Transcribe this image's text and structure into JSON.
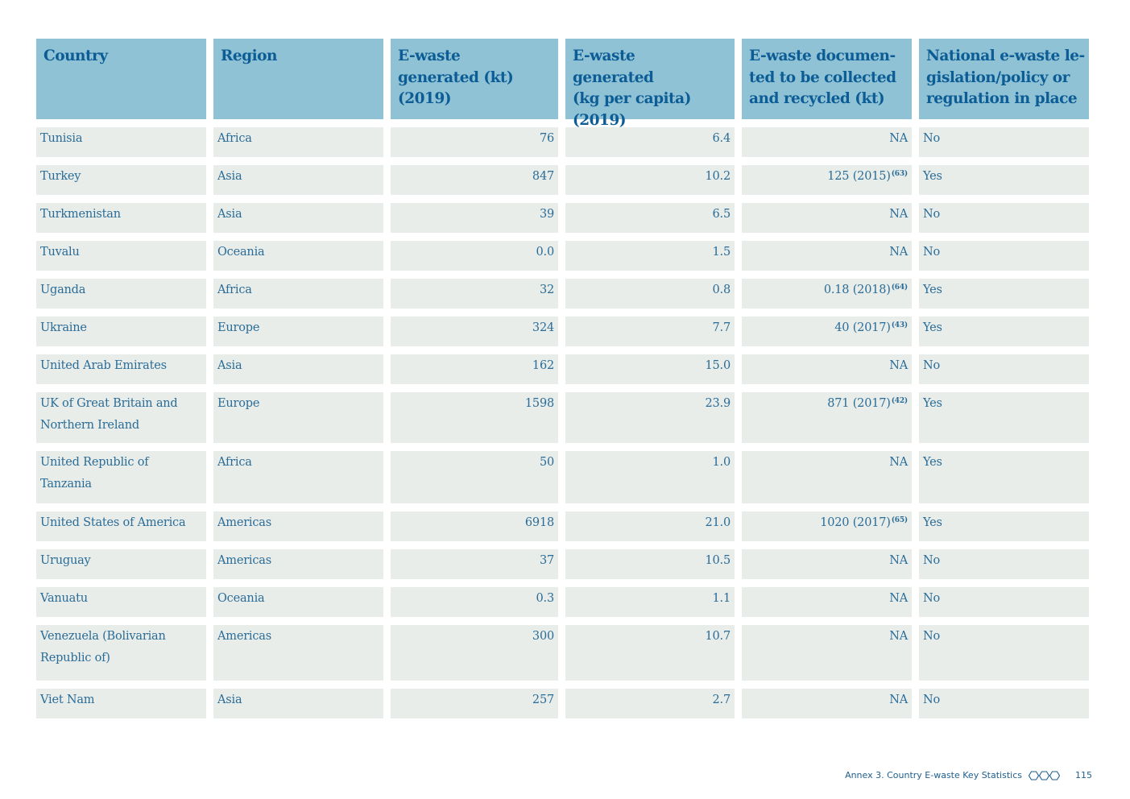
{
  "table": {
    "headers": [
      "Country",
      "Region",
      "E-waste\ngenerated (kt)\n(2019)",
      "E-waste\ngenerated\n(kg per capita) (2019)",
      "E-waste documen-\nted to be collected\nand recycled (kt)",
      "National e-waste le-\ngislation/policy or\nregulation in place"
    ],
    "rows": [
      {
        "country": "Tunisia",
        "region": "Africa",
        "kt": "76",
        "per_capita": "6.4",
        "collected": "NA",
        "collected_ref": "",
        "legislation": "No"
      },
      {
        "country": "Turkey",
        "region": "Asia",
        "kt": "847",
        "per_capita": "10.2",
        "collected": "125 (2015)",
        "collected_ref": "(63)",
        "legislation": "Yes"
      },
      {
        "country": "Turkmenistan",
        "region": "Asia",
        "kt": "39",
        "per_capita": "6.5",
        "collected": "NA",
        "collected_ref": "",
        "legislation": "No"
      },
      {
        "country": "Tuvalu",
        "region": "Oceania",
        "kt": "0.0",
        "per_capita": "1.5",
        "collected": "NA",
        "collected_ref": "",
        "legislation": "No"
      },
      {
        "country": "Uganda",
        "region": "Africa",
        "kt": "32",
        "per_capita": "0.8",
        "collected": "0.18 (2018)",
        "collected_ref": "(64)",
        "legislation": "Yes"
      },
      {
        "country": "Ukraine",
        "region": "Europe",
        "kt": "324",
        "per_capita": "7.7",
        "collected": "40 (2017)",
        "collected_ref": "(43)",
        "legislation": "Yes"
      },
      {
        "country": "United Arab Emirates",
        "region": "Asia",
        "kt": "162",
        "per_capita": "15.0",
        "collected": "NA",
        "collected_ref": "",
        "legislation": "No"
      },
      {
        "country": "UK of Great Britain and Northern Ireland",
        "region": "Europe",
        "kt": "1598",
        "per_capita": "23.9",
        "collected": "871 (2017)",
        "collected_ref": "(42)",
        "legislation": "Yes"
      },
      {
        "country": "United Republic of Tanzania",
        "region": "Africa",
        "kt": "50",
        "per_capita": "1.0",
        "collected": "NA",
        "collected_ref": "",
        "legislation": "Yes"
      },
      {
        "country": "United States of America",
        "region": "Americas",
        "kt": "6918",
        "per_capita": "21.0",
        "collected": "1020 (2017)",
        "collected_ref": "(65)",
        "legislation": "Yes"
      },
      {
        "country": "Uruguay",
        "region": "Americas",
        "kt": "37",
        "per_capita": "10.5",
        "collected": "NA",
        "collected_ref": "",
        "legislation": "No"
      },
      {
        "country": "Vanuatu",
        "region": "Oceania",
        "kt": "0.3",
        "per_capita": "1.1",
        "collected": "NA",
        "collected_ref": "",
        "legislation": "No"
      },
      {
        "country": "Venezuela (Bolivarian Republic of)",
        "region": "Americas",
        "kt": "300",
        "per_capita": "10.7",
        "collected": "NA",
        "collected_ref": "",
        "legislation": "No"
      },
      {
        "country": "Viet Nam",
        "region": "Asia",
        "kt": "257",
        "per_capita": "2.7",
        "collected": "NA",
        "collected_ref": "",
        "legislation": "No"
      }
    ]
  },
  "footer": {
    "section": "Annex 3. Country E-waste Key Statistics",
    "icon": "three-hexagons-icon",
    "page_number": "115"
  },
  "colors": {
    "header_bg": "#8fc2d4",
    "header_text": "#0c5c96",
    "cell_bg": "#e8edea",
    "cell_text": "#2a6c97"
  }
}
